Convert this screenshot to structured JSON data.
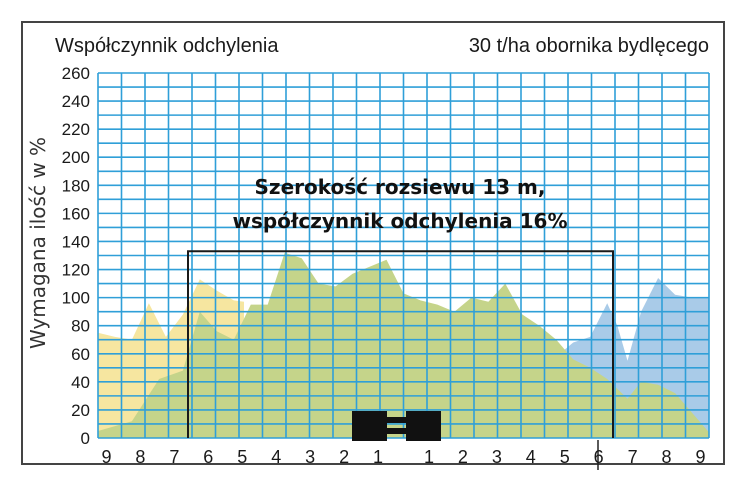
{
  "chart_data": {
    "type": "area",
    "title": "Współczynnik odchylenia",
    "subtitle": "30 t/ha obornika bydlęcego",
    "ylabel": "Wymagana ilość w %",
    "xlabel": "",
    "ylim": [
      0,
      260
    ],
    "yticks": [
      "0",
      "20",
      "40",
      "60",
      "80",
      "100",
      "120",
      "140",
      "160",
      "180",
      "200",
      "220",
      "240",
      "260"
    ],
    "xtick_labels": [
      "9",
      "8",
      "7",
      "6",
      "5",
      "4",
      "3",
      "2",
      "1",
      "1",
      "2",
      "3",
      "4",
      "5",
      "6",
      "7",
      "8",
      "9"
    ],
    "grid": true,
    "annotation": {
      "line1": "Szerokość rozsiewu 13 m,",
      "line2": "współczynnik odchylenia 16%",
      "box_top_value": 133
    },
    "series": [
      {
        "color": "#f6e6a0",
        "x": [
          -9,
          -8.5,
          -8,
          -7.5,
          -7,
          -6.5,
          -6,
          -5.5,
          -5,
          -4.7
        ],
        "y": [
          75,
          72,
          70,
          96,
          72,
          88,
          113,
          105,
          98,
          97
        ]
      },
      {
        "color": "#a9cbe8",
        "x": [
          4.5,
          5,
          5.5,
          6,
          6.3,
          6.6,
          7,
          7.5,
          8,
          8.5,
          9
        ],
        "y": [
          58,
          68,
          72,
          96,
          80,
          55,
          90,
          114,
          102,
          100,
          100
        ]
      },
      {
        "color": "#c5d48a",
        "x": [
          -9,
          -8,
          -7.2,
          -6.5,
          -6,
          -5.5,
          -5,
          -4.5,
          -4,
          -3.5,
          -3,
          -2.5,
          -2,
          -1.5,
          -1,
          -0.5,
          0,
          0.5,
          1,
          1.5,
          2,
          2.5,
          3,
          3.5,
          4,
          4.5,
          5,
          5.5,
          6,
          6.3,
          6.6,
          7,
          7.5,
          8,
          8.5,
          9
        ],
        "y": [
          5,
          12,
          42,
          48,
          90,
          76,
          70,
          95,
          95,
          132,
          128,
          110,
          108,
          117,
          122,
          127,
          103,
          98,
          95,
          90,
          100,
          97,
          110,
          88,
          80,
          70,
          56,
          50,
          42,
          35,
          28,
          40,
          38,
          32,
          18,
          4
        ]
      }
    ]
  }
}
